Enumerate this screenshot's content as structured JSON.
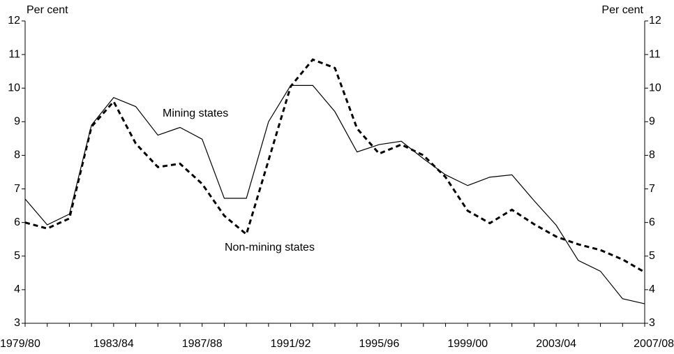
{
  "chart_data": {
    "type": "line",
    "y_label": "Per cent",
    "categories": [
      "1979/80",
      null,
      null,
      null,
      "1983/84",
      null,
      null,
      null,
      "1987/88",
      null,
      null,
      null,
      "1991/92",
      null,
      null,
      null,
      "1995/96",
      null,
      null,
      null,
      "1999/00",
      null,
      null,
      null,
      "2003/04",
      null,
      null,
      null,
      "2007/08"
    ],
    "series": [
      {
        "name": "Mining states",
        "color": "#000000",
        "style": "solid",
        "values": [
          6.7,
          5.93,
          6.25,
          8.9,
          9.72,
          9.45,
          8.6,
          8.83,
          8.48,
          6.72,
          6.72,
          9.0,
          10.08,
          10.08,
          9.3,
          8.1,
          8.32,
          8.42,
          7.9,
          7.42,
          7.1,
          7.35,
          7.42,
          6.65,
          5.92,
          4.87,
          4.55,
          3.73,
          3.58
        ]
      },
      {
        "name": "Non-mining states",
        "color": "#000000",
        "style": "dashed",
        "values": [
          6.0,
          5.82,
          6.12,
          8.85,
          9.6,
          8.35,
          7.65,
          7.75,
          7.15,
          6.2,
          5.65,
          7.85,
          10.05,
          10.85,
          10.6,
          8.8,
          8.05,
          8.32,
          8.0,
          7.35,
          6.35,
          5.98,
          6.38,
          5.95,
          5.58,
          5.35,
          5.18,
          4.9,
          4.52
        ]
      }
    ],
    "ylim": [
      3,
      12
    ],
    "yticks": [
      3,
      4,
      5,
      6,
      7,
      8,
      9,
      10,
      11,
      12
    ],
    "grid": false
  }
}
